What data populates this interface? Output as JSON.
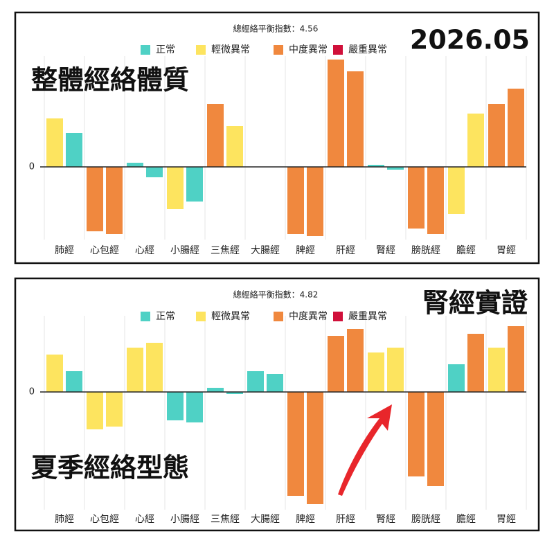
{
  "chart_data": [
    {
      "type": "bar",
      "subtitle": "總經絡平衡指數：4.56",
      "title": "2026.05",
      "annotation": "整體經絡體質",
      "legend": [
        {
          "name": "正常",
          "color": "#4fd1c5"
        },
        {
          "name": "輕微異常",
          "color": "#fde45f"
        },
        {
          "name": "中度異常",
          "color": "#f0883e"
        },
        {
          "name": "嚴重異常",
          "color": "#d0103a"
        }
      ],
      "categories": [
        "肺經",
        "心包經",
        "心經",
        "小腸經",
        "三焦經",
        "大腸經",
        "脾經",
        "肝經",
        "腎經",
        "膀胱經",
        "膽經",
        "胃經"
      ],
      "series": [
        {
          "values": [
            7.0,
            -9.3,
            0.6,
            -6.1,
            9.1,
            0,
            -9.7,
            15.5,
            0.3,
            -8.9,
            -6.8,
            9.1
          ],
          "colors": [
            "#fde45f",
            "#f0883e",
            "#4fd1c5",
            "#fde45f",
            "#f0883e",
            "#4fd1c5",
            "#f0883e",
            "#f0883e",
            "#4fd1c5",
            "#f0883e",
            "#fde45f",
            "#f0883e"
          ]
        },
        {
          "values": [
            4.9,
            -9.7,
            -1.5,
            -5.0,
            5.9,
            0,
            -10.0,
            13.8,
            -0.4,
            -9.7,
            7.7,
            11.3
          ],
          "colors": [
            "#4fd1c5",
            "#f0883e",
            "#4fd1c5",
            "#4fd1c5",
            "#fde45f",
            "#4fd1c5",
            "#f0883e",
            "#f0883e",
            "#4fd1c5",
            "#f0883e",
            "#fde45f",
            "#f0883e"
          ]
        }
      ],
      "ylim": [
        -10.5,
        16
      ],
      "yticks": [
        0
      ],
      "grid": true
    },
    {
      "type": "bar",
      "subtitle": "總經絡平衡指數：4.82",
      "title": "腎經實證",
      "annotation": "夏季經絡型態",
      "legend": [
        {
          "name": "正常",
          "color": "#4fd1c5"
        },
        {
          "name": "輕微異常",
          "color": "#fde45f"
        },
        {
          "name": "中度異常",
          "color": "#f0883e"
        },
        {
          "name": "嚴重異常",
          "color": "#d0103a"
        }
      ],
      "categories": [
        "肺經",
        "心包經",
        "心經",
        "小腸經",
        "三焦經",
        "大腸經",
        "脾經",
        "肝經",
        "腎經",
        "膀胱經",
        "膽經",
        "胃經"
      ],
      "series": [
        {
          "values": [
            5.4,
            -5.4,
            6.4,
            -4.1,
            0.6,
            3.0,
            -15.0,
            8.1,
            5.7,
            -12.2,
            4.0,
            6.4
          ],
          "colors": [
            "#fde45f",
            "#fde45f",
            "#fde45f",
            "#4fd1c5",
            "#4fd1c5",
            "#4fd1c5",
            "#f0883e",
            "#f0883e",
            "#fde45f",
            "#f0883e",
            "#4fd1c5",
            "#fde45f"
          ]
        },
        {
          "values": [
            3.0,
            -5.0,
            7.1,
            -4.4,
            -0.3,
            2.6,
            -16.2,
            9.1,
            6.4,
            -13.6,
            8.4,
            9.5
          ],
          "colors": [
            "#4fd1c5",
            "#fde45f",
            "#fde45f",
            "#4fd1c5",
            "#4fd1c5",
            "#4fd1c5",
            "#f0883e",
            "#f0883e",
            "#fde45f",
            "#f0883e",
            "#f0883e",
            "#f0883e"
          ]
        }
      ],
      "ylim": [
        -17,
        11
      ],
      "yticks": [
        0
      ],
      "grid": true
    }
  ]
}
